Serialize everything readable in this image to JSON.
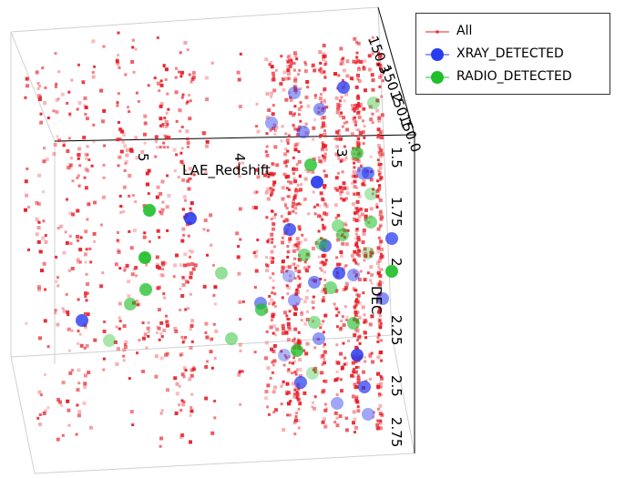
{
  "chart_data": {
    "type": "scatter",
    "projection": "3d",
    "axes": {
      "x": {
        "label": "LAE_Redshift",
        "ticks": [
          "5",
          "4",
          "3"
        ]
      },
      "y": {
        "label": "DEC",
        "ticks": [
          "1.5",
          "1.75",
          "2",
          "2.25",
          "2.5",
          "2.75"
        ]
      },
      "z": {
        "label": "",
        "ticks": [
          "150.3",
          "150.2",
          "150.1",
          "150.0"
        ]
      }
    },
    "legend_position": "top-right",
    "series": [
      {
        "name": "All",
        "color": "#e8202a",
        "marker": "small-square"
      },
      {
        "name": "XRAY_DETECTED",
        "color": "#2a3cf0",
        "marker": "large-circle"
      },
      {
        "name": "RADIO_DETECTED",
        "color": "#1fbf2a",
        "marker": "large-circle"
      }
    ]
  },
  "legend": {
    "items": [
      {
        "label": "All",
        "color": "#e8202a",
        "icon": "line-with-dot-icon"
      },
      {
        "label": "XRAY_DETECTED",
        "color": "#2a3cf0",
        "icon": "blue-circle-icon"
      },
      {
        "label": "RADIO_DETECTED",
        "color": "#1fbf2a",
        "icon": "green-circle-icon"
      }
    ]
  }
}
